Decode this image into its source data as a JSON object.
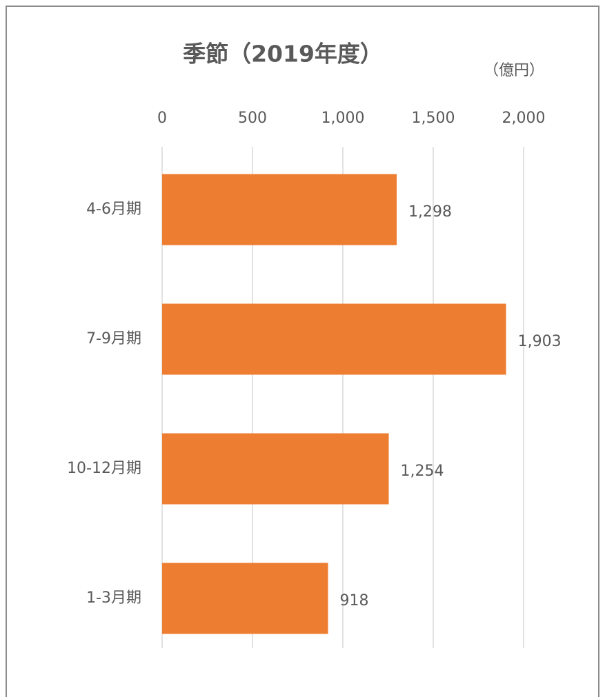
{
  "chart_data": {
    "type": "bar",
    "orientation": "horizontal",
    "title": "季節（2019年度）",
    "unit_label": "（億円）",
    "categories": [
      "4-6月期",
      "7-9月期",
      "10-12月期",
      "1-3月期"
    ],
    "values": [
      1298,
      1903,
      1254,
      918
    ],
    "value_labels": [
      "1,298",
      "1,903",
      "1,254",
      "918"
    ],
    "color": "#ed7d31",
    "xlim": [
      0,
      2000
    ],
    "xticks": [
      0,
      500,
      {
        "value": 1000,
        "label": "1,000"
      },
      {
        "value": 1500,
        "label": "1,500"
      },
      {
        "value": 2000,
        "label": "2,000"
      }
    ],
    "grid": true
  }
}
